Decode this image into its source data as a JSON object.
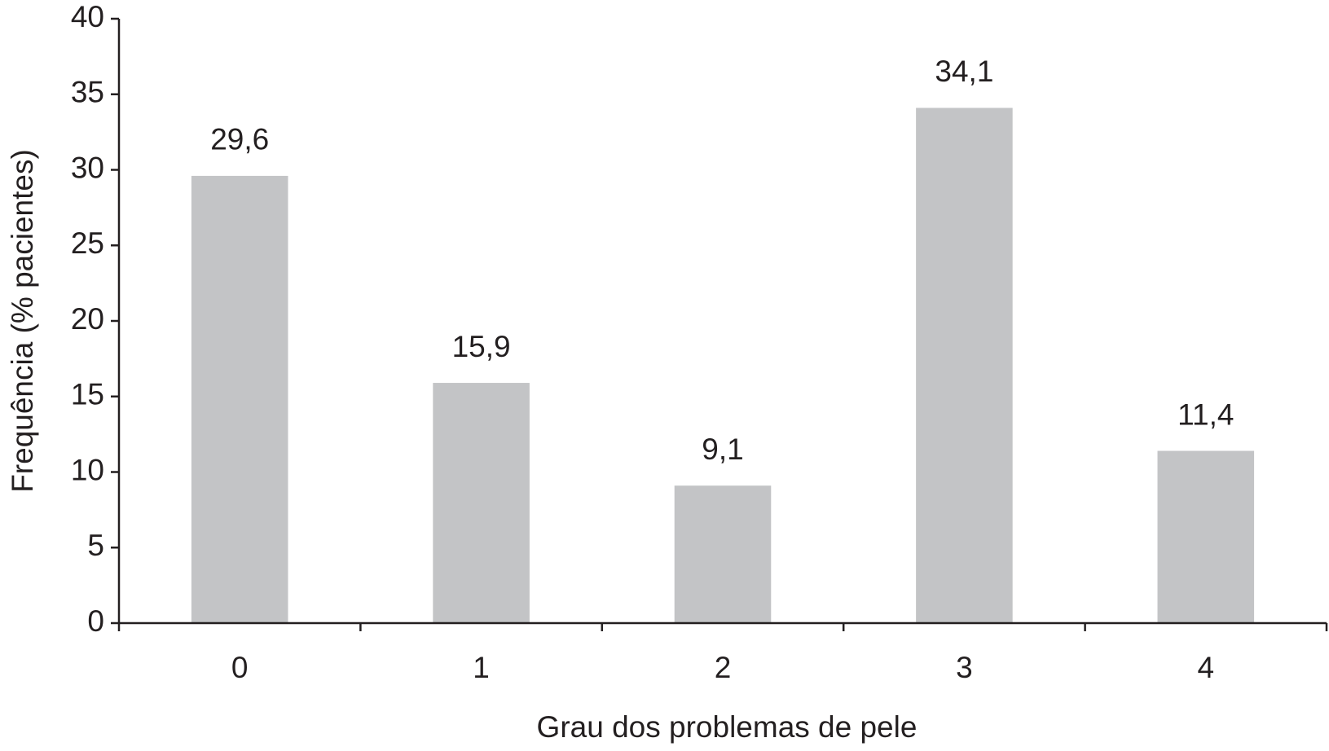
{
  "chart_data": {
    "type": "bar",
    "x_label": "Grau dos problemas de pele",
    "y_label": "Frequência (% pacientes)",
    "categories": [
      "0",
      "1",
      "2",
      "3",
      "4"
    ],
    "values": [
      29.6,
      15.9,
      9.1,
      34.1,
      11.4
    ],
    "value_labels": [
      "29,6",
      "15,9",
      "9,1",
      "34,1",
      "11,4"
    ],
    "color": "#c3c4c6",
    "ylim": [
      0,
      40
    ],
    "yticks": [
      0,
      5,
      10,
      15,
      20,
      25,
      30,
      35,
      40
    ],
    "grid": false
  }
}
